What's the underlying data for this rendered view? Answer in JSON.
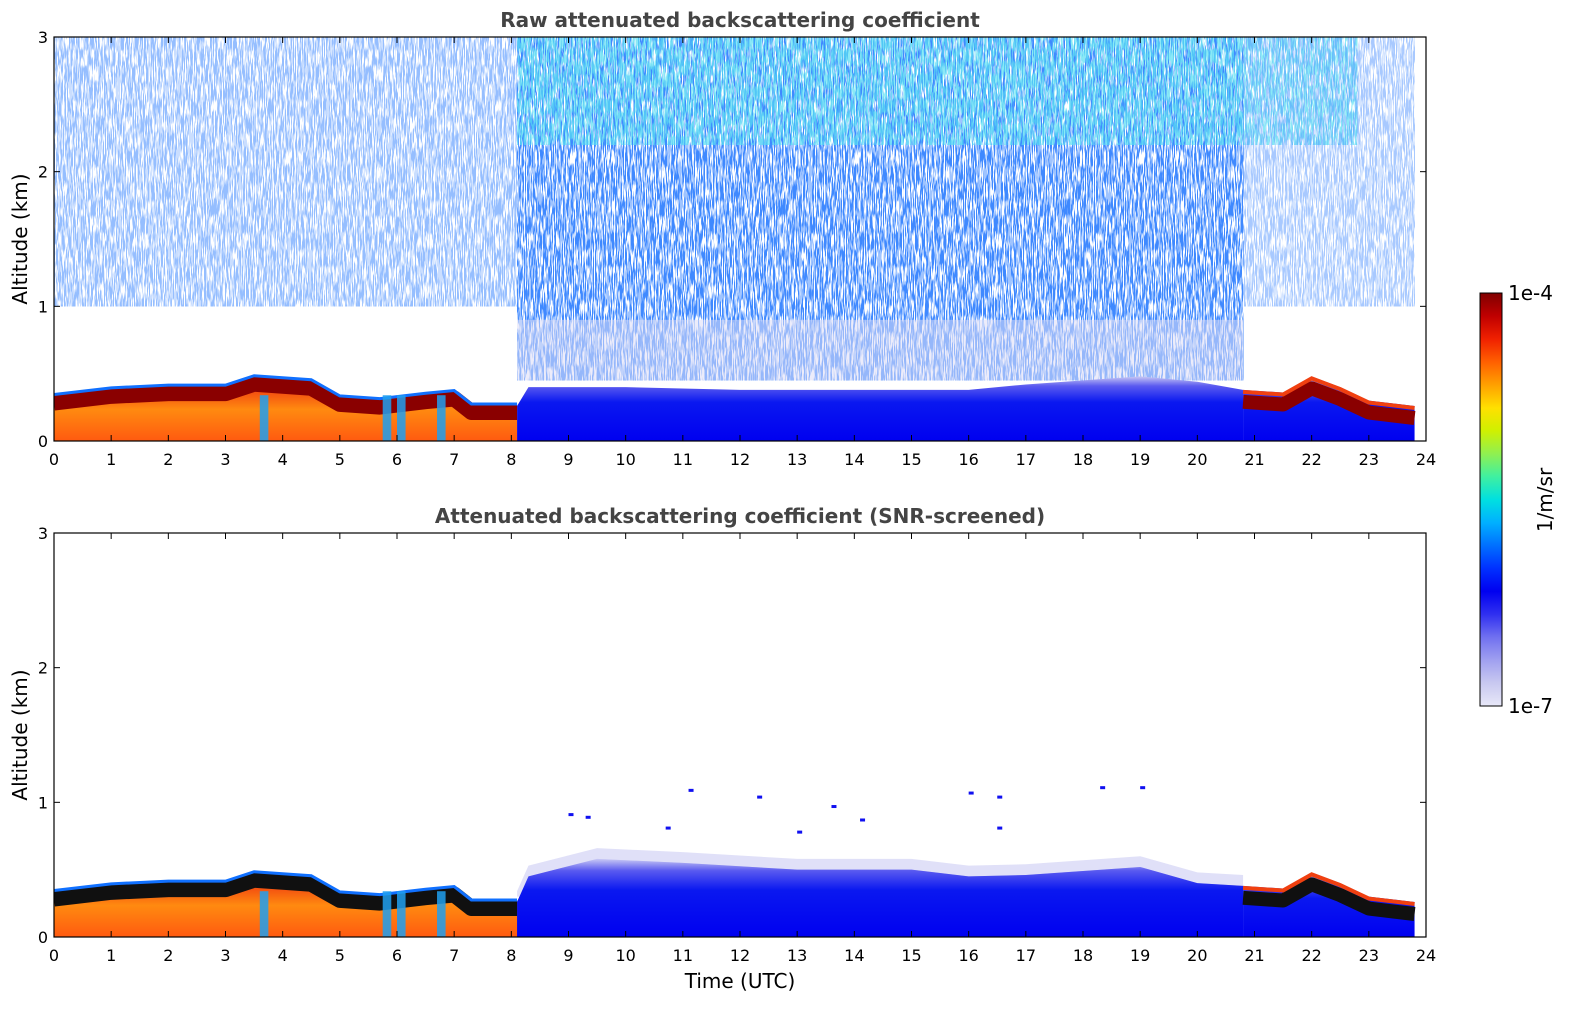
{
  "chart_data": [
    {
      "type": "heatmap",
      "title": "Raw attenuated backscattering coefficient",
      "xlabel": "",
      "ylabel": "Altitude (km)",
      "xlim": [
        0,
        24
      ],
      "ylim": [
        0,
        3
      ],
      "xticks": [
        "0",
        "1",
        "2",
        "3",
        "4",
        "5",
        "6",
        "7",
        "8",
        "9",
        "10",
        "11",
        "12",
        "13",
        "14",
        "15",
        "16",
        "17",
        "18",
        "19",
        "20",
        "21",
        "22",
        "23",
        "24"
      ],
      "yticks": [
        "0",
        "1",
        "2",
        "3"
      ],
      "color_scale": "log",
      "noise": "high",
      "boundary_layer_top_km": [
        [
          0,
          0.33
        ],
        [
          1,
          0.38
        ],
        [
          2,
          0.4
        ],
        [
          3,
          0.4
        ],
        [
          3.5,
          0.47
        ],
        [
          4.5,
          0.44
        ],
        [
          5,
          0.32
        ],
        [
          5.7,
          0.3
        ],
        [
          6.5,
          0.34
        ],
        [
          7,
          0.36
        ],
        [
          7.3,
          0.26
        ],
        [
          8.1,
          0.26
        ],
        [
          8.3,
          0.4
        ],
        [
          10,
          0.4
        ],
        [
          12,
          0.38
        ],
        [
          14,
          0.38
        ],
        [
          16,
          0.38
        ],
        [
          17,
          0.42
        ],
        [
          19,
          0.48
        ],
        [
          20,
          0.44
        ],
        [
          20.8,
          0.38
        ],
        [
          21.5,
          0.36
        ],
        [
          22,
          0.48
        ],
        [
          22.5,
          0.4
        ],
        [
          23,
          0.3
        ],
        [
          23.8,
          0.26
        ]
      ],
      "segments": [
        {
          "x": [
            0,
            8.1
          ],
          "y_top_km": 0.4,
          "level": "high",
          "colors": "red-orange with dark red layer top"
        },
        {
          "x": [
            8.1,
            20.8
          ],
          "y_top_km": 0.45,
          "level": "low",
          "colors": "blue"
        },
        {
          "x": [
            20.8,
            23.8
          ],
          "y_top_km": 0.5,
          "level": "high",
          "colors": "dark red layer with blue below"
        }
      ]
    },
    {
      "type": "heatmap",
      "title": "Attenuated backscattering coefficient (SNR-screened)",
      "xlabel": "Time (UTC)",
      "ylabel": "Altitude (km)",
      "xlim": [
        0,
        24
      ],
      "ylim": [
        0,
        3
      ],
      "xticks": [
        "0",
        "1",
        "2",
        "3",
        "4",
        "5",
        "6",
        "7",
        "8",
        "9",
        "10",
        "11",
        "12",
        "13",
        "14",
        "15",
        "16",
        "17",
        "18",
        "19",
        "20",
        "21",
        "22",
        "23",
        "24"
      ],
      "yticks": [
        "0",
        "1",
        "2",
        "3"
      ],
      "color_scale": "log",
      "noise": "screened",
      "boundary_layer_top_km": [
        [
          0,
          0.33
        ],
        [
          1,
          0.38
        ],
        [
          2,
          0.4
        ],
        [
          3,
          0.4
        ],
        [
          3.5,
          0.47
        ],
        [
          4.5,
          0.44
        ],
        [
          5,
          0.32
        ],
        [
          5.7,
          0.3
        ],
        [
          6.5,
          0.34
        ],
        [
          7,
          0.36
        ],
        [
          7.3,
          0.26
        ],
        [
          8.1,
          0.26
        ],
        [
          8.3,
          0.45
        ],
        [
          9.5,
          0.58
        ],
        [
          11,
          0.55
        ],
        [
          13,
          0.5
        ],
        [
          15,
          0.5
        ],
        [
          16,
          0.45
        ],
        [
          17,
          0.46
        ],
        [
          19,
          0.52
        ],
        [
          20,
          0.4
        ],
        [
          20.8,
          0.38
        ],
        [
          21.5,
          0.36
        ],
        [
          22,
          0.48
        ],
        [
          22.5,
          0.4
        ],
        [
          23,
          0.3
        ],
        [
          23.8,
          0.26
        ]
      ],
      "segments": [
        {
          "x": [
            0,
            8.1
          ],
          "y_top_km": 0.4,
          "level": "high",
          "colors": "red-orange with black layer top"
        },
        {
          "x": [
            8.1,
            20.8
          ],
          "y_top_km": 0.55,
          "level": "low",
          "colors": "blue"
        },
        {
          "x": [
            20.8,
            23.8
          ],
          "y_top_km": 0.5,
          "level": "high",
          "colors": "black layer with blue below"
        }
      ]
    }
  ],
  "colorbar": {
    "label": "1/m/sr",
    "max_label": "1e-4",
    "min_label": "1e-7",
    "colors": [
      "#e8e8f8",
      "#c8c8f0",
      "#a0a0f0",
      "#7070f0",
      "#3030f0",
      "#0000f0",
      "#0030ff",
      "#0070ff",
      "#00b0ff",
      "#00e0e0",
      "#40f0a0",
      "#90f050",
      "#d0f000",
      "#ffe000",
      "#ffa000",
      "#ff6000",
      "#f02000",
      "#c00000",
      "#800000"
    ]
  }
}
